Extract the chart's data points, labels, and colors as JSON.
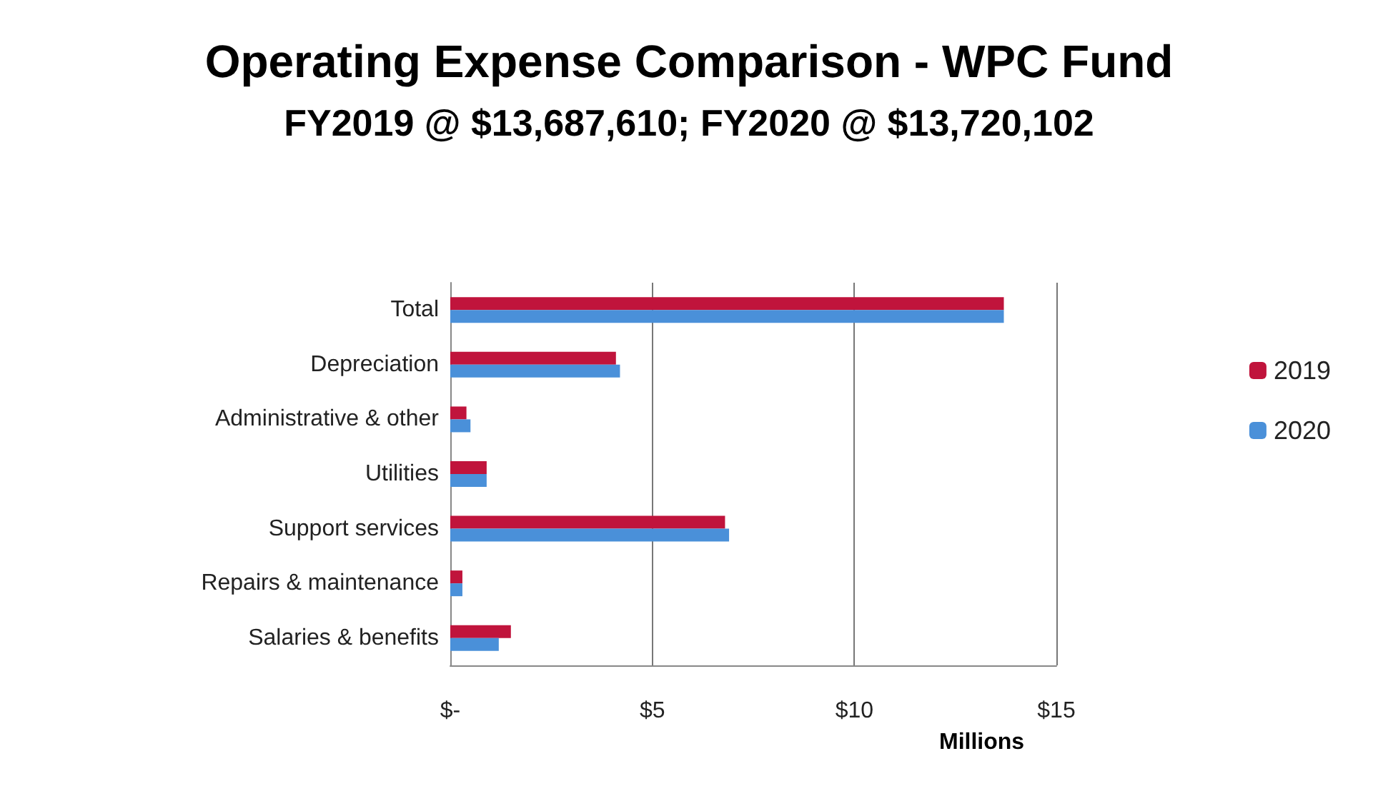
{
  "chart_data": {
    "type": "bar",
    "orientation": "horizontal",
    "title": "Operating Expense Comparison - WPC Fund",
    "subtitle": "FY2019 @ $13,687,610; FY2020 @ $13,720,102",
    "xlabel": "Millions",
    "categories": [
      "Total",
      "Depreciation",
      "Administrative & other",
      "Utilities",
      "Support services",
      "Repairs & maintenance",
      "Salaries & benefits"
    ],
    "series": [
      {
        "name": "2019",
        "color": "#c0143c",
        "values": [
          13.7,
          4.1,
          0.4,
          0.9,
          6.8,
          0.3,
          1.5
        ]
      },
      {
        "name": "2020",
        "color": "#4a90d9",
        "values": [
          13.7,
          4.2,
          0.5,
          0.9,
          6.9,
          0.3,
          1.2
        ]
      }
    ],
    "xlim": [
      0,
      15
    ],
    "xticks": [
      {
        "value": 0,
        "label": "$-"
      },
      {
        "value": 5,
        "label": "$5"
      },
      {
        "value": 10,
        "label": "$10"
      },
      {
        "value": 15,
        "label": "$15"
      }
    ],
    "grid": "x",
    "legend": "right"
  }
}
